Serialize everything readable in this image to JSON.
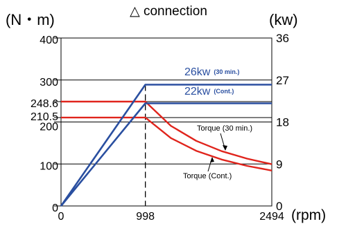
{
  "chart_data": {
    "type": "line",
    "title": "△ connection",
    "ylabel_left": "(N・m)",
    "ylabel_right": "(kw)",
    "xlabel": "(rpm)",
    "xlim": [
      0,
      2494
    ],
    "ylim_left": [
      0,
      400
    ],
    "ylim_right": [
      0,
      36
    ],
    "xticks": [
      "0",
      "998",
      "2494"
    ],
    "yticks_left": [
      {
        "value": 0,
        "label": "0"
      },
      {
        "value": 100,
        "label": "100"
      },
      {
        "value": 200,
        "label": "200"
      },
      {
        "value": 210.5,
        "label": "210.5"
      },
      {
        "value": 248.6,
        "label": "248.6"
      },
      {
        "value": 300,
        "label": "300"
      },
      {
        "value": 400,
        "label": "400"
      }
    ],
    "yticks_right": [
      "0",
      "9",
      "18",
      "27",
      "36"
    ],
    "grid": true,
    "base_speed_marker": 998,
    "series": [
      {
        "name": "Torque (30 min.)",
        "axis": "left",
        "color": "#e0241c",
        "x": [
          0,
          998,
          1300,
          1600,
          1900,
          2200,
          2494
        ],
        "y": [
          248.6,
          248.6,
          190.8,
          155.1,
          130.6,
          112.8,
          99.5
        ]
      },
      {
        "name": "Torque (Cont.)",
        "axis": "left",
        "color": "#e0241c",
        "x": [
          0,
          998,
          1300,
          1600,
          1900,
          2200,
          2494
        ],
        "y": [
          210.5,
          210.5,
          161.6,
          131.3,
          110.6,
          95.5,
          84.2
        ]
      },
      {
        "name": "26kw (30 min.)",
        "axis": "right",
        "color": "#2a4fa0",
        "x": [
          0,
          998,
          2494
        ],
        "y": [
          0,
          26,
          26
        ]
      },
      {
        "name": "22kw (Cont.)",
        "axis": "right",
        "color": "#2a4fa0",
        "x": [
          0,
          998,
          2494
        ],
        "y": [
          0,
          22,
          22
        ]
      }
    ],
    "annotations": {
      "power_30": {
        "big": "26kw",
        "small": "(30 min.)"
      },
      "power_cont": {
        "big": "22kw",
        "small": "(Cont.)"
      },
      "torque_30": "Torque (30 min.)",
      "torque_cont": "Torque (Cont.)"
    }
  }
}
